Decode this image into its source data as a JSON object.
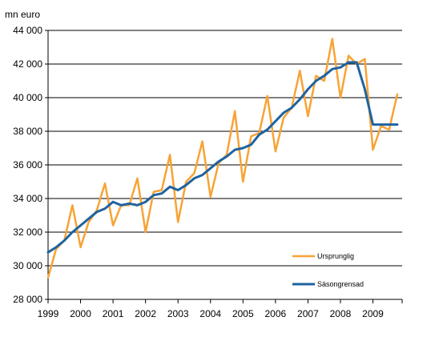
{
  "chart_data": {
    "type": "line",
    "unit_label": "mn euro",
    "x_start": 1999.0,
    "x_step": 0.25,
    "x_tick_labels": [
      "1999",
      "2000",
      "2001",
      "2002",
      "2003",
      "2004",
      "2005",
      "2006",
      "2007",
      "2008",
      "2009"
    ],
    "x_tick_values": [
      1999,
      2000,
      2001,
      2002,
      2003,
      2004,
      2005,
      2006,
      2007,
      2008,
      2009
    ],
    "xlim": [
      1999,
      2009.9
    ],
    "ylim": [
      28000,
      44000
    ],
    "y_ticks": [
      28000,
      30000,
      32000,
      34000,
      36000,
      38000,
      40000,
      42000,
      44000
    ],
    "y_tick_labels": [
      "28 000",
      "30 000",
      "32 000",
      "34 000",
      "36 000",
      "38 000",
      "40 000",
      "42 000",
      "44 000"
    ],
    "grid": "horizontal",
    "legend_position": "bottom-right",
    "colors": {
      "original": "#f7a335",
      "seasonal": "#1f63a0",
      "grid": "#000000"
    },
    "series": [
      {
        "name": "Ursprunglig",
        "color": "#f7a335",
        "values": [
          29300,
          31000,
          31500,
          33600,
          31100,
          32600,
          33300,
          34900,
          32400,
          33600,
          33600,
          35200,
          32000,
          34400,
          34500,
          36600,
          32600,
          35000,
          35500,
          37400,
          34100,
          36100,
          36600,
          39200,
          35000,
          37700,
          37900,
          40100,
          36800,
          38800,
          39400,
          41600,
          38900,
          41300,
          41000,
          43500,
          40000,
          42500,
          42000,
          42300,
          36900,
          38300,
          38100,
          40200
        ]
      },
      {
        "name": "Säsongrensad",
        "color": "#1f63a0",
        "values": [
          30800,
          31100,
          31500,
          32000,
          32400,
          32800,
          33200,
          33400,
          33800,
          33600,
          33700,
          33600,
          33800,
          34200,
          34300,
          34700,
          34500,
          34800,
          35200,
          35400,
          35800,
          36200,
          36500,
          36900,
          37000,
          37200,
          37800,
          38100,
          38600,
          39100,
          39400,
          39900,
          40500,
          41000,
          41300,
          41700,
          41800,
          42100,
          42100,
          40500,
          38400,
          38400,
          38400,
          38400
        ]
      }
    ]
  }
}
